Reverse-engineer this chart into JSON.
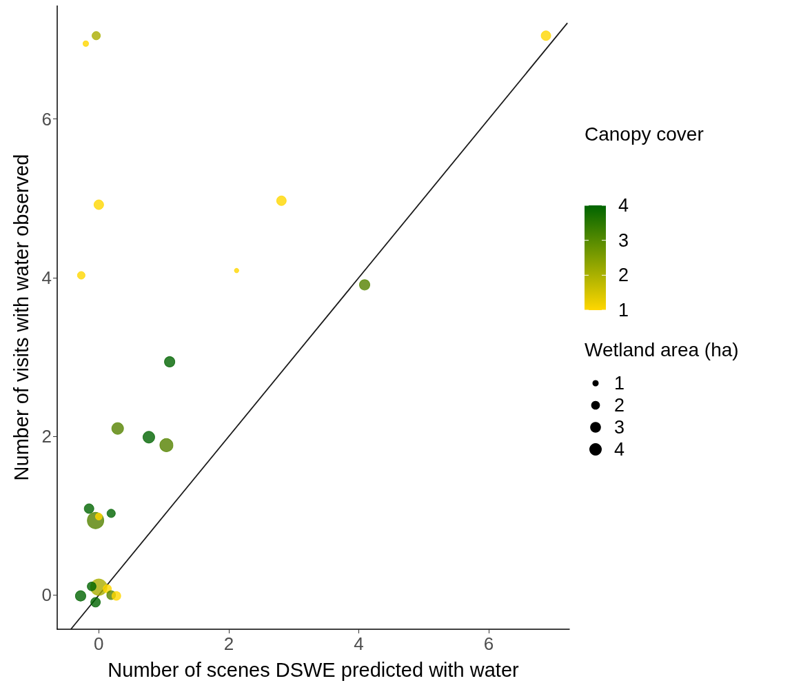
{
  "chart_data": {
    "type": "bubble",
    "xlabel": "Number of scenes DSWE predicted with water",
    "ylabel": "Number of visits with water observed",
    "clabel": "Canopy cover",
    "legend_title": "Wetland area (ha)",
    "x": [
      -0.04,
      -0.2,
      6.88,
      0,
      2.81,
      -0.27,
      2.12,
      4.09,
      1.09,
      0.29,
      0.77,
      1.04,
      -0.15,
      0.19,
      -0.05,
      0,
      0,
      -0.11,
      0.13,
      0.19,
      0.27,
      -0.28,
      -0.05
    ],
    "values": [
      7.05,
      6.95,
      7.05,
      4.92,
      4.97,
      4.03,
      4.09,
      3.91,
      2.94,
      2.1,
      1.99,
      1.89,
      1.09,
      1.03,
      0.94,
      0.99,
      0.1,
      0.11,
      0.08,
      0,
      -0.01,
      -0.01,
      -0.09
    ],
    "sizes": [
      1.8,
      0.8,
      2.4,
      2.4,
      2.4,
      1.5,
      0.5,
      2.8,
      2.8,
      3.6,
      3.6,
      4.5,
      2.4,
      1.8,
      7,
      1.2,
      7,
      2,
      1.8,
      2,
      2,
      2.8,
      2.4
    ],
    "cvalues": [
      2,
      1,
      1,
      1,
      1,
      1,
      1,
      3,
      4,
      3,
      4,
      3,
      4,
      4,
      3,
      1,
      2,
      4,
      1,
      3,
      1,
      4,
      4
    ],
    "colors": [
      "#aaac00",
      "#ffd700",
      "#ffd700",
      "#ffd700",
      "#ffd700",
      "#ffd700",
      "#ffd700",
      "#558100",
      "#006400",
      "#558100",
      "#006400",
      "#558100",
      "#006400",
      "#006400",
      "#558100",
      "#ffd700",
      "#aaac00",
      "#006400",
      "#ffd700",
      "#558100",
      "#ffd700",
      "#006400",
      "#006400"
    ],
    "size_legend": [
      1,
      2,
      3,
      4
    ],
    "clim": [
      1,
      4
    ],
    "cticks": [
      1,
      2,
      3,
      4
    ],
    "series": [
      {
        "type": "line",
        "x": [
          -0.43,
          7.21
        ],
        "values": [
          -0.43,
          7.21
        ],
        "color": "#1a1a1a"
      }
    ],
    "xlim": [
      -0.64,
      7.24
    ],
    "ylim": [
      -0.43,
      7.43
    ],
    "xticks": [
      0,
      2,
      4,
      6
    ],
    "yticks": [
      0,
      2,
      4,
      6
    ],
    "line_style": "solid"
  }
}
